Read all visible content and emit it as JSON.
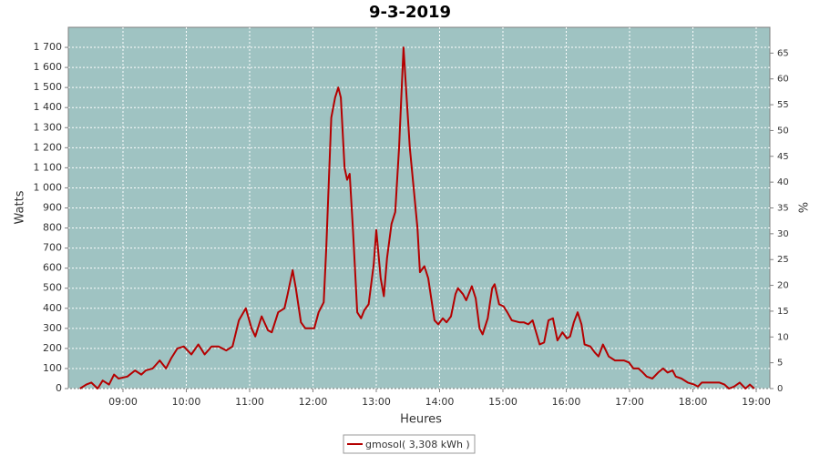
{
  "chart_data": {
    "type": "line",
    "title": "9-3-2019",
    "xlabel": "Heures",
    "ylabel": "Watts",
    "y2label": "%",
    "x": [
      8.32,
      8.42,
      8.5,
      8.6,
      8.68,
      8.78,
      8.86,
      8.93,
      9.07,
      9.19,
      9.29,
      9.36,
      9.47,
      9.58,
      9.68,
      9.76,
      9.86,
      9.96,
      10.08,
      10.19,
      10.29,
      10.4,
      10.51,
      10.63,
      10.73,
      10.83,
      10.94,
      11.03,
      11.09,
      11.19,
      11.29,
      11.35,
      11.45,
      11.55,
      11.6,
      11.68,
      11.73,
      11.81,
      11.88,
      12.02,
      12.09,
      12.17,
      12.21,
      12.24,
      12.29,
      12.35,
      12.4,
      12.44,
      12.5,
      12.54,
      12.58,
      12.63,
      12.7,
      12.76,
      12.81,
      12.88,
      12.96,
      13.0,
      13.07,
      13.12,
      13.17,
      13.24,
      13.3,
      13.36,
      13.43,
      13.47,
      13.53,
      13.59,
      13.65,
      13.69,
      13.76,
      13.82,
      13.92,
      13.98,
      14.05,
      14.11,
      14.18,
      14.25,
      14.29,
      14.37,
      14.42,
      14.51,
      14.57,
      14.63,
      14.68,
      14.76,
      14.83,
      14.87,
      14.94,
      15.01,
      15.07,
      15.14,
      15.26,
      15.33,
      15.4,
      15.47,
      15.58,
      15.65,
      15.72,
      15.79,
      15.86,
      15.94,
      16.01,
      16.06,
      16.12,
      16.18,
      16.24,
      16.29,
      16.38,
      16.45,
      16.51,
      16.58,
      16.67,
      16.77,
      16.91,
      16.99,
      17.06,
      17.14,
      17.21,
      17.27,
      17.36,
      17.45,
      17.53,
      17.6,
      17.68,
      17.73,
      17.82,
      17.92,
      18.02,
      18.08,
      18.14,
      18.25,
      18.42,
      18.5,
      18.57,
      18.65,
      18.74,
      18.83,
      18.9,
      18.97
    ],
    "series": [
      {
        "name": "gmosol( 3,308 kWh )",
        "color": "#b40000",
        "values": [
          0,
          20,
          30,
          0,
          40,
          20,
          70,
          50,
          60,
          90,
          70,
          90,
          100,
          140,
          100,
          150,
          200,
          210,
          170,
          220,
          170,
          210,
          210,
          190,
          210,
          340,
          400,
          300,
          260,
          360,
          290,
          280,
          380,
          400,
          470,
          590,
          500,
          330,
          300,
          300,
          380,
          430,
          700,
          950,
          1350,
          1450,
          1500,
          1450,
          1100,
          1040,
          1070,
          800,
          380,
          350,
          390,
          420,
          620,
          790,
          550,
          460,
          650,
          820,
          880,
          1200,
          1700,
          1500,
          1200,
          1000,
          800,
          580,
          610,
          550,
          340,
          320,
          350,
          330,
          360,
          470,
          500,
          470,
          440,
          510,
          450,
          300,
          270,
          350,
          500,
          520,
          420,
          410,
          380,
          340,
          330,
          330,
          320,
          340,
          220,
          230,
          340,
          350,
          240,
          280,
          250,
          260,
          330,
          380,
          320,
          220,
          210,
          180,
          160,
          220,
          160,
          140,
          140,
          130,
          100,
          100,
          80,
          60,
          50,
          80,
          100,
          80,
          90,
          60,
          50,
          30,
          20,
          10,
          30,
          30,
          30,
          20,
          0,
          10,
          30,
          0,
          20,
          0
        ]
      }
    ],
    "xlim": [
      8.137,
      19.216
    ],
    "xticks": [
      {
        "value": 9,
        "label": "09:00"
      },
      {
        "value": 10,
        "label": "10:00"
      },
      {
        "value": 11,
        "label": "11:00"
      },
      {
        "value": 12,
        "label": "12:00"
      },
      {
        "value": 13,
        "label": "13:00"
      },
      {
        "value": 14,
        "label": "14:00"
      },
      {
        "value": 15,
        "label": "15:00"
      },
      {
        "value": 16,
        "label": "16:00"
      },
      {
        "value": 17,
        "label": "17:00"
      },
      {
        "value": 18,
        "label": "18:00"
      },
      {
        "value": 19,
        "label": "19:00"
      }
    ],
    "ylim": [
      0,
      1800
    ],
    "yticks": [
      0,
      100,
      200,
      300,
      400,
      500,
      600,
      700,
      800,
      900,
      {
        "value": 1000,
        "label": "1 000"
      },
      {
        "value": 1100,
        "label": "1 100"
      },
      {
        "value": 1200,
        "label": "1 200"
      },
      {
        "value": 1300,
        "label": "1 300"
      },
      {
        "value": 1400,
        "label": "1 400"
      },
      {
        "value": 1500,
        "label": "1 500"
      },
      {
        "value": 1600,
        "label": "1 600"
      },
      {
        "value": 1700,
        "label": "1 700"
      }
    ],
    "y2lim": [
      0,
      70
    ],
    "y2ticks": [
      0,
      5,
      10,
      15,
      20,
      25,
      30,
      35,
      40,
      45,
      50,
      55,
      60,
      65
    ],
    "grid": true,
    "legend": "bottom"
  }
}
